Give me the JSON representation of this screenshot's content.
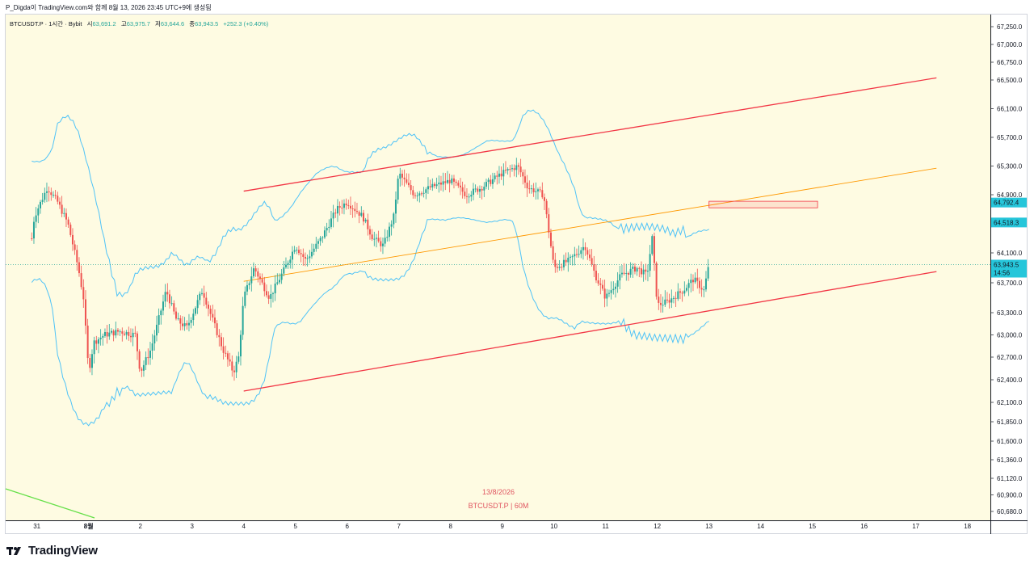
{
  "header": {
    "author_line": "P_Digda이 TradingView.com와 함께 8월 13, 2026 23:45 UTC+9에 생성됨"
  },
  "legend": {
    "symbol": "BTCUSDT.P · 1시간 · Bybit",
    "open_label": "시",
    "open": "63,691.2",
    "high_label": "고",
    "high": "63,975.7",
    "low_label": "저",
    "low": "63,644.6",
    "close_label": "종",
    "close": "63,943.5",
    "change": "+252.3 (+0.40%)"
  },
  "watermark": {
    "date": "13/8/2026",
    "symbol": "BTCUSDT.P | 60M"
  },
  "branding": {
    "name": "TradingView"
  },
  "price_axis": {
    "labels": [
      "67,250.0",
      "67,000.0",
      "66,750.0",
      "66,500.0",
      "66,100.0",
      "65,700.0",
      "65,300.0",
      "64,900.0",
      "64,100.0",
      "63,700.0",
      "63,300.0",
      "63,000.0",
      "62,700.0",
      "62,400.0",
      "62,100.0",
      "61,850.0",
      "61,600.0",
      "61,360.0",
      "61,120.0",
      "60,900.0",
      "60,680.0"
    ],
    "badges": [
      {
        "value": "64,792.4",
        "sub": "",
        "color": "#26c6da"
      },
      {
        "value": "64,518.3",
        "sub": "",
        "color": "#26c6da"
      },
      {
        "value": "63,943.5",
        "sub": "14:56",
        "color": "#26c6da"
      }
    ]
  },
  "time_axis": {
    "labels": [
      "31",
      "8월",
      "2",
      "3",
      "4",
      "5",
      "6",
      "7",
      "8",
      "9",
      "10",
      "11",
      "12",
      "13",
      "14",
      "15",
      "16",
      "17",
      "18"
    ]
  },
  "colors": {
    "up": "#26a69a",
    "down": "#ef5350",
    "channel": "#f23645",
    "midline": "#ff9800",
    "bands": "#4fc3f7",
    "background": "#fefbe2"
  },
  "chart_data": {
    "type": "candlestick",
    "symbol": "BTCUSDT.P",
    "interval": "1h",
    "ylim": [
      60600,
      67400
    ],
    "x_dates": [
      "31",
      "8월",
      "2",
      "3",
      "4",
      "5",
      "6",
      "7",
      "8",
      "9",
      "10",
      "11",
      "12",
      "13",
      "14",
      "15",
      "16",
      "17",
      "18"
    ],
    "close_path": [
      [
        30.9,
        64300
      ],
      [
        30.95,
        64600
      ],
      [
        31.2,
        65000
      ],
      [
        31.4,
        64800
      ],
      [
        31.6,
        64500
      ],
      [
        31.8,
        63900
      ],
      [
        31.9,
        63500
      ],
      [
        32.0,
        62500
      ],
      [
        32.1,
        62900
      ],
      [
        32.3,
        63000
      ],
      [
        32.6,
        63050
      ],
      [
        32.9,
        63000
      ],
      [
        33.0,
        62500
      ],
      [
        33.2,
        62800
      ],
      [
        33.5,
        63600
      ],
      [
        33.7,
        63200
      ],
      [
        33.9,
        63100
      ],
      [
        34.2,
        63600
      ],
      [
        34.4,
        63200
      ],
      [
        34.6,
        62800
      ],
      [
        34.8,
        62500
      ],
      [
        34.9,
        62700
      ],
      [
        35.0,
        63500
      ],
      [
        35.2,
        63900
      ],
      [
        35.5,
        63500
      ],
      [
        35.8,
        63900
      ],
      [
        36.0,
        64200
      ],
      [
        36.2,
        64000
      ],
      [
        36.5,
        64300
      ],
      [
        36.8,
        64700
      ],
      [
        37.0,
        64800
      ],
      [
        37.3,
        64600
      ],
      [
        37.5,
        64300
      ],
      [
        37.7,
        64200
      ],
      [
        37.9,
        64600
      ],
      [
        38.0,
        65200
      ],
      [
        38.3,
        64900
      ],
      [
        38.6,
        65000
      ],
      [
        39.0,
        65100
      ],
      [
        39.3,
        64900
      ],
      [
        39.6,
        65000
      ],
      [
        40.0,
        65200
      ],
      [
        40.3,
        65300
      ],
      [
        40.5,
        65000
      ],
      [
        40.8,
        64900
      ],
      [
        41.0,
        63900
      ],
      [
        41.3,
        64000
      ],
      [
        41.6,
        64200
      ],
      [
        41.8,
        63800
      ],
      [
        42.0,
        63500
      ],
      [
        42.3,
        63800
      ],
      [
        42.6,
        63900
      ],
      [
        42.8,
        63800
      ],
      [
        42.9,
        64300
      ],
      [
        43.0,
        63400
      ],
      [
        43.2,
        63450
      ],
      [
        43.5,
        63600
      ],
      [
        43.7,
        63750
      ],
      [
        43.9,
        63600
      ],
      [
        44.0,
        63943.5
      ]
    ],
    "channel_upper": [
      [
        35.0,
        64950
      ],
      [
        48.4,
        66530
      ]
    ],
    "channel_lower": [
      [
        35.0,
        62250
      ],
      [
        48.4,
        63850
      ]
    ],
    "channel_mid": [
      [
        35.0,
        63720
      ],
      [
        48.4,
        65270
      ]
    ],
    "zone": {
      "x": [
        44.0,
        46.1
      ],
      "y": [
        64720,
        64810
      ]
    },
    "price_line": 63943.5
  }
}
